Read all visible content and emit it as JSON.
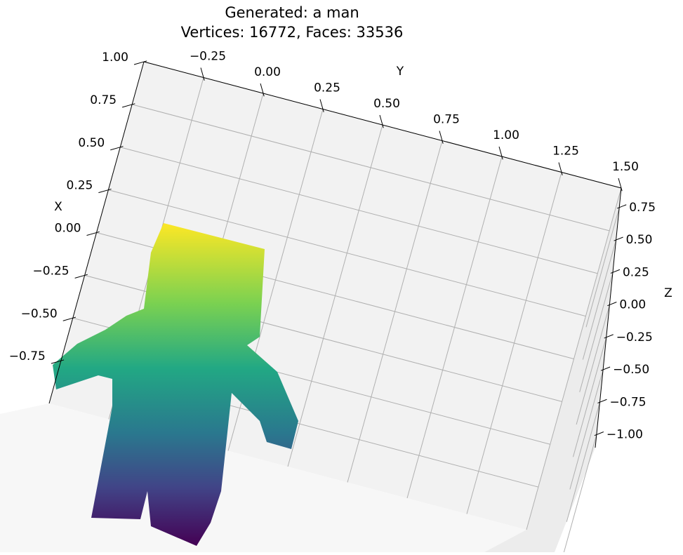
{
  "chart_data": {
    "type": "scatter3d",
    "title": "Generated: a man",
    "subtitle": "Vertices: 16772, Faces: 33536",
    "x_label": "X",
    "y_label": "Y",
    "z_label": "Z",
    "xlim": [
      -1,
      1
    ],
    "xticks": [
      {
        "value": -0.75,
        "label": "−0.75"
      },
      {
        "value": -0.5,
        "label": "−0.50"
      },
      {
        "value": -0.25,
        "label": "−0.25"
      },
      {
        "value": 0,
        "label": "0.00"
      },
      {
        "value": 0.25,
        "label": "0.25"
      },
      {
        "value": 0.5,
        "label": "0.50"
      },
      {
        "value": 0.75,
        "label": "0.75"
      },
      {
        "value": 1,
        "label": "1.00"
      }
    ],
    "ylim": [
      -0.5,
      1.5
    ],
    "yticks": [
      {
        "value": -0.25,
        "label": "−0.25"
      },
      {
        "value": 0,
        "label": "0.00"
      },
      {
        "value": 0.25,
        "label": "0.25"
      },
      {
        "value": 0.5,
        "label": "0.50"
      },
      {
        "value": 0.75,
        "label": "0.75"
      },
      {
        "value": 1,
        "label": "1.00"
      },
      {
        "value": 1.25,
        "label": "1.25"
      },
      {
        "value": 1.5,
        "label": "1.50"
      }
    ],
    "zlim": [
      -1.1,
      0.9
    ],
    "zticks": [
      {
        "value": -1,
        "label": "−1.00"
      },
      {
        "value": -0.75,
        "label": "−0.75"
      },
      {
        "value": -0.5,
        "label": "−0.50"
      },
      {
        "value": -0.25,
        "label": "−0.25"
      },
      {
        "value": 0,
        "label": "0.00"
      },
      {
        "value": 0.25,
        "label": "0.25"
      },
      {
        "value": 0.5,
        "label": "0.50"
      },
      {
        "value": 0.75,
        "label": "0.75"
      }
    ],
    "grid": true
  }
}
